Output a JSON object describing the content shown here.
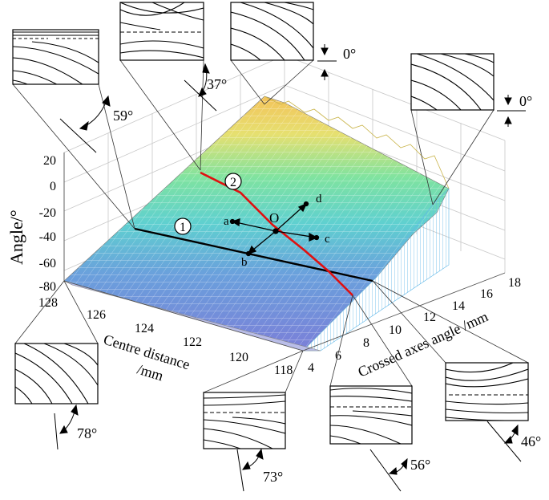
{
  "axes": {
    "z_label": "Angle/°",
    "z_ticks": [
      "20",
      "0",
      "-20",
      "-40",
      "-60",
      "-80"
    ],
    "x_label_line1": "Centre distance",
    "x_label_line2": "/mm",
    "x_ticks": [
      "128",
      "126",
      "124",
      "122",
      "120",
      "118"
    ],
    "y_label": "Crossed axes angle /mm",
    "y_ticks": [
      "4",
      "6",
      "8",
      "10",
      "12",
      "14",
      "16",
      "18"
    ]
  },
  "curves": {
    "line1_label": "1",
    "line2_label": "2",
    "line1_color": "#000000",
    "line2_color": "#e01010"
  },
  "vector_labels": {
    "origin": "O",
    "a": "a",
    "b": "b",
    "c": "c",
    "d": "d"
  },
  "insets": [
    {
      "id": "inset-59",
      "angle": "59°"
    },
    {
      "id": "inset-37",
      "angle": "37°"
    },
    {
      "id": "inset-0-top",
      "angle": "0°"
    },
    {
      "id": "inset-0-right",
      "angle": "0°"
    },
    {
      "id": "inset-78",
      "angle": "78°"
    },
    {
      "id": "inset-73",
      "angle": "73°"
    },
    {
      "id": "inset-56",
      "angle": "56°"
    },
    {
      "id": "inset-46",
      "angle": "46°"
    }
  ]
}
